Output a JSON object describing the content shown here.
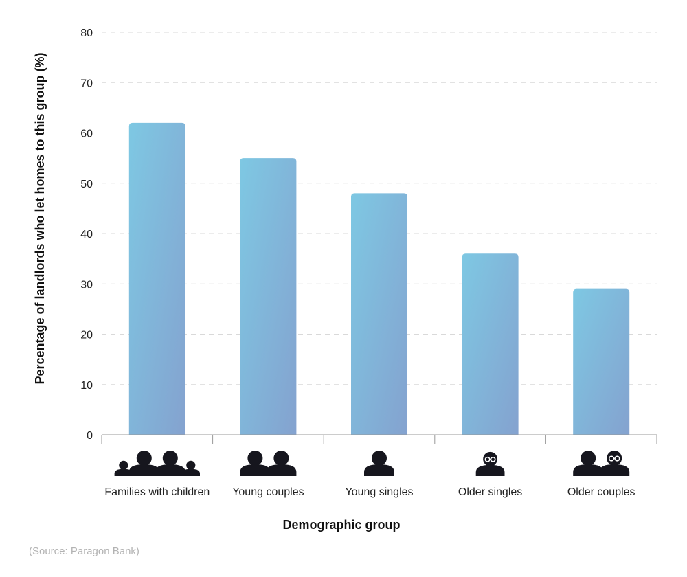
{
  "chart_data": {
    "type": "bar",
    "categories": [
      "Families with children",
      "Young couples",
      "Young singles",
      "Older singles",
      "Older couples"
    ],
    "icons": [
      "family-icon",
      "couple-icon",
      "single-person-icon",
      "older-person-icon",
      "older-couple-icon"
    ],
    "values": [
      62,
      55,
      48,
      36,
      29
    ],
    "xlabel": "Demographic group",
    "ylabel": "Percentage of landlords who let homes to this group (%)",
    "ylim": [
      0,
      80
    ],
    "yticks": [
      0,
      10,
      20,
      30,
      40,
      50,
      60,
      70,
      80
    ],
    "grid": true,
    "colors": {
      "bar_top": "#7ec8e3",
      "bar_bottom": "#84a4d0",
      "icon": "#16161e",
      "grid": "#d9d9d9",
      "axis": "#999999"
    }
  },
  "source": "(Source: Paragon Bank)"
}
